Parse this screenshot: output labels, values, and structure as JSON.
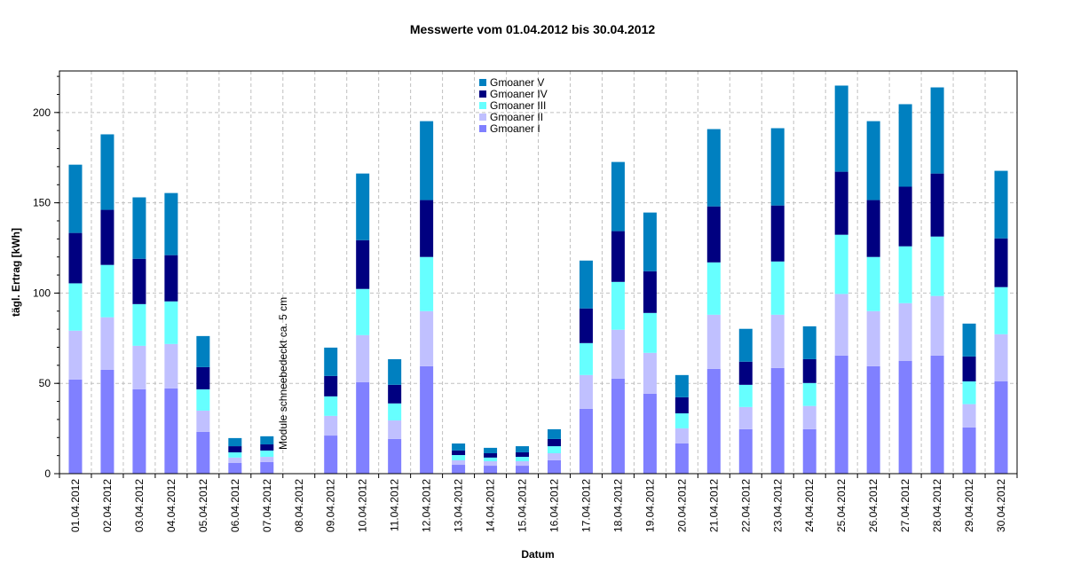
{
  "chart_data": {
    "type": "bar",
    "stacked": true,
    "title": "Messwerte vom 01.04.2012 bis 30.04.2012",
    "xlabel": "Datum",
    "ylabel": "tägl. Ertrag [kWh]",
    "ylim": [
      0,
      223
    ],
    "yticks": [
      0,
      50,
      100,
      150,
      200
    ],
    "grid": true,
    "legend_position": "top-center",
    "annotation": {
      "category": "08.04.2012",
      "text": "Module schneebedeckt ca. 5 cm"
    },
    "categories": [
      "01.04.2012",
      "02.04.2012",
      "03.04.2012",
      "04.04.2012",
      "05.04.2012",
      "06.04.2012",
      "07.04.2012",
      "08.04.2012",
      "09.04.2012",
      "10.04.2012",
      "11.04.2012",
      "12.04.2012",
      "13.04.2012",
      "14.04.2012",
      "15.04.2012",
      "16.04.2012",
      "17.04.2012",
      "18.04.2012",
      "19.04.2012",
      "20.04.2012",
      "21.04.2012",
      "22.04.2012",
      "23.04.2012",
      "24.04.2012",
      "25.04.2012",
      "26.04.2012",
      "27.04.2012",
      "28.04.2012",
      "29.04.2012",
      "30.04.2012"
    ],
    "series": [
      {
        "name": "Gmoaner I",
        "color": "#8080ff",
        "values": [
          52.1,
          57.5,
          46.7,
          47.2,
          23.1,
          5.9,
          6.4,
          0,
          21.1,
          50.7,
          19.2,
          59.5,
          4.9,
          4.4,
          4.4,
          7.4,
          35.9,
          52.6,
          44.3,
          16.7,
          58.0,
          24.6,
          58.5,
          24.6,
          65.4,
          59.5,
          62.5,
          65.4,
          25.6,
          51.1
        ]
      },
      {
        "name": "Gmoaner II",
        "color": "#c0c0ff",
        "values": [
          27.1,
          29.1,
          24.1,
          24.6,
          11.8,
          3.0,
          2.9,
          0,
          10.9,
          26.0,
          10.3,
          30.5,
          2.5,
          2.5,
          2.5,
          3.9,
          18.7,
          27.1,
          22.6,
          8.4,
          30.0,
          12.3,
          29.5,
          12.9,
          34.1,
          30.5,
          31.9,
          33.0,
          12.9,
          26.1
        ]
      },
      {
        "name": "Gmoaner III",
        "color": "#66ffff",
        "values": [
          26.2,
          29.0,
          23.1,
          23.6,
          11.8,
          2.9,
          3.5,
          0,
          10.8,
          25.6,
          9.4,
          30.0,
          2.9,
          2.0,
          2.4,
          3.9,
          17.7,
          26.5,
          22.1,
          8.3,
          29.0,
          12.3,
          29.5,
          12.7,
          32.8,
          30.0,
          31.5,
          32.9,
          12.6,
          26.1
        ]
      },
      {
        "name": "Gmoaner IV",
        "color": "#000080",
        "values": [
          27.9,
          30.5,
          25.1,
          25.6,
          12.3,
          3.4,
          3.4,
          0,
          11.3,
          27.0,
          10.3,
          31.5,
          2.5,
          2.4,
          2.5,
          4.0,
          19.2,
          28.1,
          23.1,
          8.9,
          31.0,
          12.8,
          31.0,
          13.2,
          34.9,
          31.5,
          33.0,
          34.9,
          13.8,
          27.0
        ]
      },
      {
        "name": "Gmoaner V",
        "color": "#0080c0",
        "values": [
          37.8,
          41.8,
          34.0,
          34.4,
          17.2,
          4.5,
          4.5,
          0,
          15.7,
          36.9,
          14.2,
          43.7,
          3.9,
          3.0,
          3.4,
          5.4,
          26.5,
          38.3,
          32.5,
          12.3,
          42.8,
          18.2,
          42.8,
          18.2,
          47.7,
          43.7,
          45.7,
          47.7,
          18.2,
          37.4
        ]
      }
    ]
  }
}
